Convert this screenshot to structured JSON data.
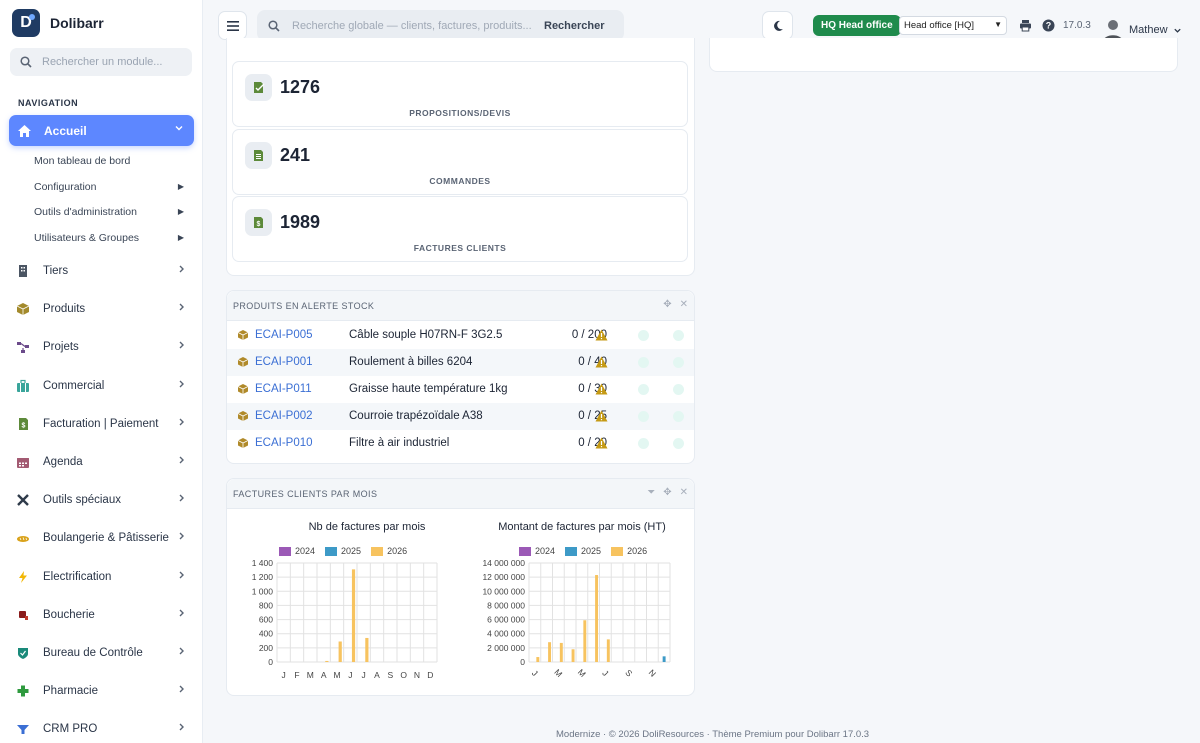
{
  "brand": {
    "name": "Dolibarr",
    "logo_letter": "D"
  },
  "sidebar": {
    "search_placeholder": "Rechercher un module...",
    "caption": "NAVIGATION",
    "active": {
      "label": "Accueil",
      "icon": "home-icon"
    },
    "subitems": [
      {
        "label": "Mon tableau de bord",
        "has_arrow": false
      },
      {
        "label": "Configuration",
        "has_arrow": true
      },
      {
        "label": "Outils d'administration",
        "has_arrow": true
      },
      {
        "label": "Utilisateurs & Groupes",
        "has_arrow": true
      }
    ],
    "items": [
      {
        "label": "Tiers",
        "icon": "building-icon",
        "color": "#4b5563"
      },
      {
        "label": "Produits",
        "icon": "box-icon",
        "color": "#a38a2c"
      },
      {
        "label": "Projets",
        "icon": "project-icon",
        "color": "#6b4a8a"
      },
      {
        "label": "Commercial",
        "icon": "briefcase-icon",
        "color": "#3aa59b"
      },
      {
        "label": "Facturation | Paiement",
        "icon": "invoice-icon",
        "color": "#5d8a3a"
      },
      {
        "label": "Agenda",
        "icon": "calendar-icon",
        "color": "#a35a72"
      },
      {
        "label": "Outils spéciaux",
        "icon": "tools-icon",
        "color": "#2f3b4a"
      },
      {
        "label": "Boulangerie & Pâtisserie",
        "icon": "bread-icon",
        "color": "#d9a21a"
      },
      {
        "label": "Electrification",
        "icon": "bolt-icon",
        "color": "#f2b705"
      },
      {
        "label": "Boucherie",
        "icon": "meat-icon",
        "color": "#8a1c1c"
      },
      {
        "label": "Bureau de Contrôle",
        "icon": "shield-icon",
        "color": "#1a8a7a"
      },
      {
        "label": "Pharmacie",
        "icon": "cross-icon",
        "color": "#2e9a3e"
      },
      {
        "label": "CRM PRO",
        "icon": "funnel-icon",
        "color": "#3b6fd4"
      }
    ]
  },
  "header": {
    "search_placeholder": "Recherche globale — clients, factures, produits...",
    "search_button": "Rechercher",
    "hq_badge": "HQ  Head office",
    "entity_selected": "Head office [HQ]",
    "version": "17.0.3",
    "user_name": "Mathew"
  },
  "stats": [
    {
      "value": "1276",
      "label": "PROPOSITIONS/DEVIS",
      "icon": "proposal-icon"
    },
    {
      "value": "241",
      "label": "COMMANDES",
      "icon": "order-icon"
    },
    {
      "value": "1989",
      "label": "FACTURES CLIENTS",
      "icon": "invoice-icon"
    }
  ],
  "stock_panel": {
    "title": "PRODUITS EN ALERTE STOCK",
    "rows": [
      {
        "ref": "ECAI-P005",
        "name": "Câble souple H07RN-F 3G2.5",
        "qty": "0 / 200"
      },
      {
        "ref": "ECAI-P001",
        "name": "Roulement à billes 6204",
        "qty": "0 / 40"
      },
      {
        "ref": "ECAI-P011",
        "name": "Graisse haute température 1kg",
        "qty": "0 / 30"
      },
      {
        "ref": "ECAI-P002",
        "name": "Courroie trapézoïdale A38",
        "qty": "0 / 25"
      },
      {
        "ref": "ECAI-P010",
        "name": "Filtre à air industriel",
        "qty": "0 / 20"
      }
    ]
  },
  "invoice_panel": {
    "title": "FACTURES CLIENTS PAR MOIS"
  },
  "chart_data": [
    {
      "type": "bar",
      "title": "Nb de factures par mois",
      "categories": [
        "J",
        "F",
        "M",
        "A",
        "M",
        "J",
        "J",
        "A",
        "S",
        "O",
        "N",
        "D"
      ],
      "ylim": [
        0,
        1400
      ],
      "yticks": [
        "0",
        "200",
        "400",
        "600",
        "800",
        "1 000",
        "1 200",
        "1 400"
      ],
      "grid": true,
      "legend": "top",
      "series": [
        {
          "name": "2024",
          "color": "#9b59b6",
          "values": [
            0,
            0,
            0,
            0,
            0,
            0,
            0,
            0,
            0,
            0,
            0,
            0
          ]
        },
        {
          "name": "2025",
          "color": "#3d9ac7",
          "values": [
            0,
            0,
            0,
            0,
            0,
            0,
            0,
            0,
            0,
            0,
            0,
            0
          ]
        },
        {
          "name": "2026",
          "color": "#f7c35f",
          "values": [
            0,
            0,
            0,
            15,
            290,
            1310,
            340,
            0,
            0,
            0,
            0,
            0
          ]
        }
      ]
    },
    {
      "type": "bar",
      "title": "Montant de factures par mois (HT)",
      "categories": [
        "J",
        "F",
        "M",
        "A",
        "M",
        "J",
        "J",
        "A",
        "S",
        "O",
        "N",
        "D"
      ],
      "xtick_labels": [
        "J",
        "M",
        "M",
        "J",
        "S",
        "N"
      ],
      "ylim": [
        0,
        14000000
      ],
      "yticks": [
        "0",
        "2 000 000",
        "4 000 000",
        "6 000 000",
        "8 000 000",
        "10 000 000",
        "12 000 000",
        "14 000 000"
      ],
      "grid": true,
      "legend": "top",
      "series": [
        {
          "name": "2024",
          "color": "#9b59b6",
          "values": [
            0,
            0,
            0,
            0,
            0,
            0,
            0,
            0,
            0,
            0,
            0,
            0
          ]
        },
        {
          "name": "2025",
          "color": "#3d9ac7",
          "values": [
            0,
            0,
            0,
            0,
            0,
            0,
            0,
            0,
            0,
            0,
            0,
            800000
          ]
        },
        {
          "name": "2026",
          "color": "#f7c35f",
          "values": [
            700000,
            2800000,
            2700000,
            1800000,
            5900000,
            12300000,
            3200000,
            0,
            0,
            0,
            0,
            0
          ]
        }
      ]
    }
  ],
  "footer": "Modernize · © 2026 DoliResources · Thème Premium pour Dolibarr 17.0.3"
}
